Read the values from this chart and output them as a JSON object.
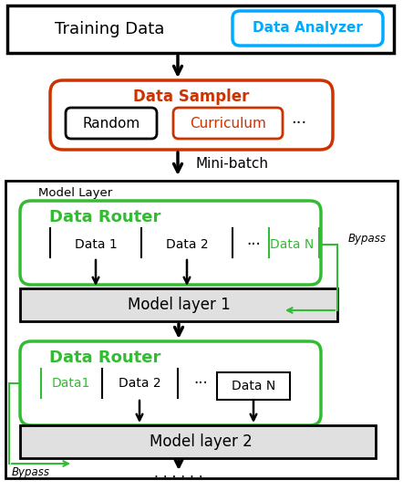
{
  "fig_width": 4.42,
  "fig_height": 5.38,
  "dpi": 100,
  "background": "#ffffff",
  "title_text": "Training Data",
  "data_analyzer_text": "Data Analyzer",
  "data_analyzer_color": "#00aaff",
  "data_sampler_text": "Data Sampler",
  "data_sampler_color": "#cc3300",
  "random_text": "Random",
  "curriculum_text": "Curriculum",
  "minibatch_text": "Mini-batch",
  "model_layer_text": "Model Layer",
  "data_router_text": "Data Router",
  "data_router_color": "#33bb33",
  "data1_text": "Data 1",
  "data2_text": "Data 2",
  "dataN_text": "Data N",
  "bypass_text": "Bypass",
  "model_layer1_text": "Model layer 1",
  "model_layer2_text": "Model layer 2",
  "data1b_text": "Data1",
  "data2b_text": "Data 2",
  "dataNb_text": "Data N",
  "black": "#000000",
  "gray_fill": "#e0e0e0",
  "white_fill": "#ffffff"
}
